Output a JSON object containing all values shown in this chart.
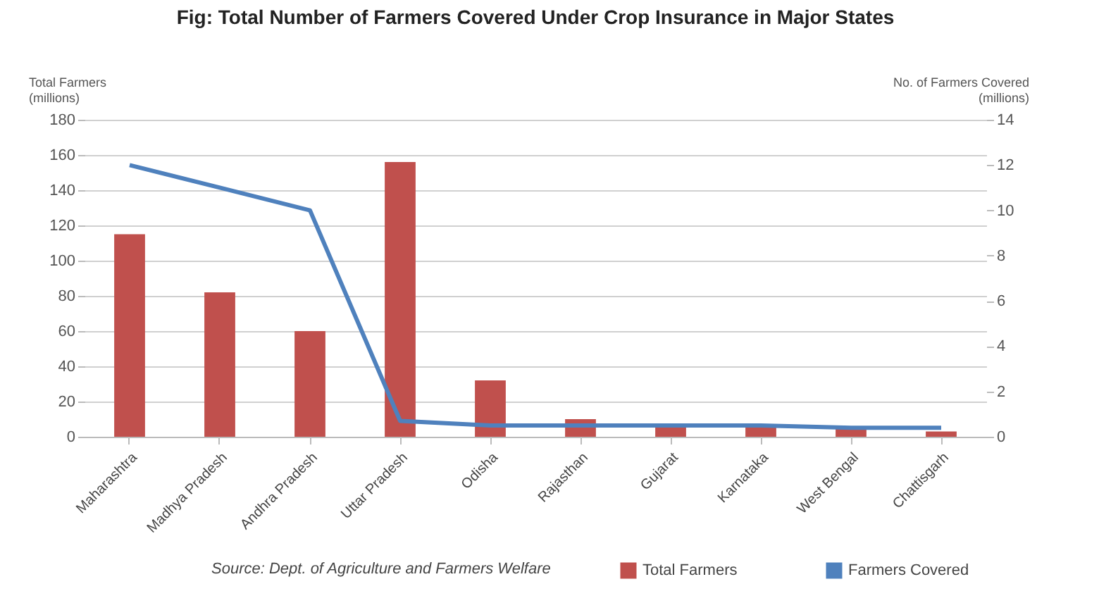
{
  "chart_data": {
    "type": "bar",
    "title": "Fig: Total Number of Farmers Covered Under Crop Insurance in Major States",
    "ylabel": "Total Farmers (millions)",
    "y2label": "No. of Farmers Covered (millions)",
    "categories": [
      "Maharashtra",
      "Madhya Pradesh",
      "Andhra Pradesh",
      "Uttar Pradesh",
      "Odisha",
      "Rajasthan",
      "Gujarat",
      "Karnataka",
      "West Bengal",
      "Chattisgarh"
    ],
    "series": [
      {
        "name": "Total Farmers",
        "color": "#c0504d",
        "values": [
          115,
          82,
          60,
          156,
          32,
          10,
          7,
          7,
          6,
          3
        ]
      },
      {
        "name": "Farmers Covered",
        "type": "line",
        "axis": "y2",
        "color": "#4f81bd",
        "values": [
          12,
          11,
          10,
          0.7,
          0.5,
          0.5,
          0.5,
          0.5,
          0.4,
          0.4
        ]
      }
    ],
    "ylim": [
      0,
      180
    ],
    "yticks": [
      0,
      20,
      40,
      60,
      80,
      100,
      120,
      140,
      160,
      180
    ],
    "y2lim": [
      0,
      14
    ],
    "y2ticks": [
      0,
      2,
      4,
      6,
      8,
      10,
      12,
      14
    ],
    "grid": "y",
    "legend": "bottom right",
    "annotations": [
      "Source: Dept. of Agriculture and Farmers Welfare"
    ]
  }
}
